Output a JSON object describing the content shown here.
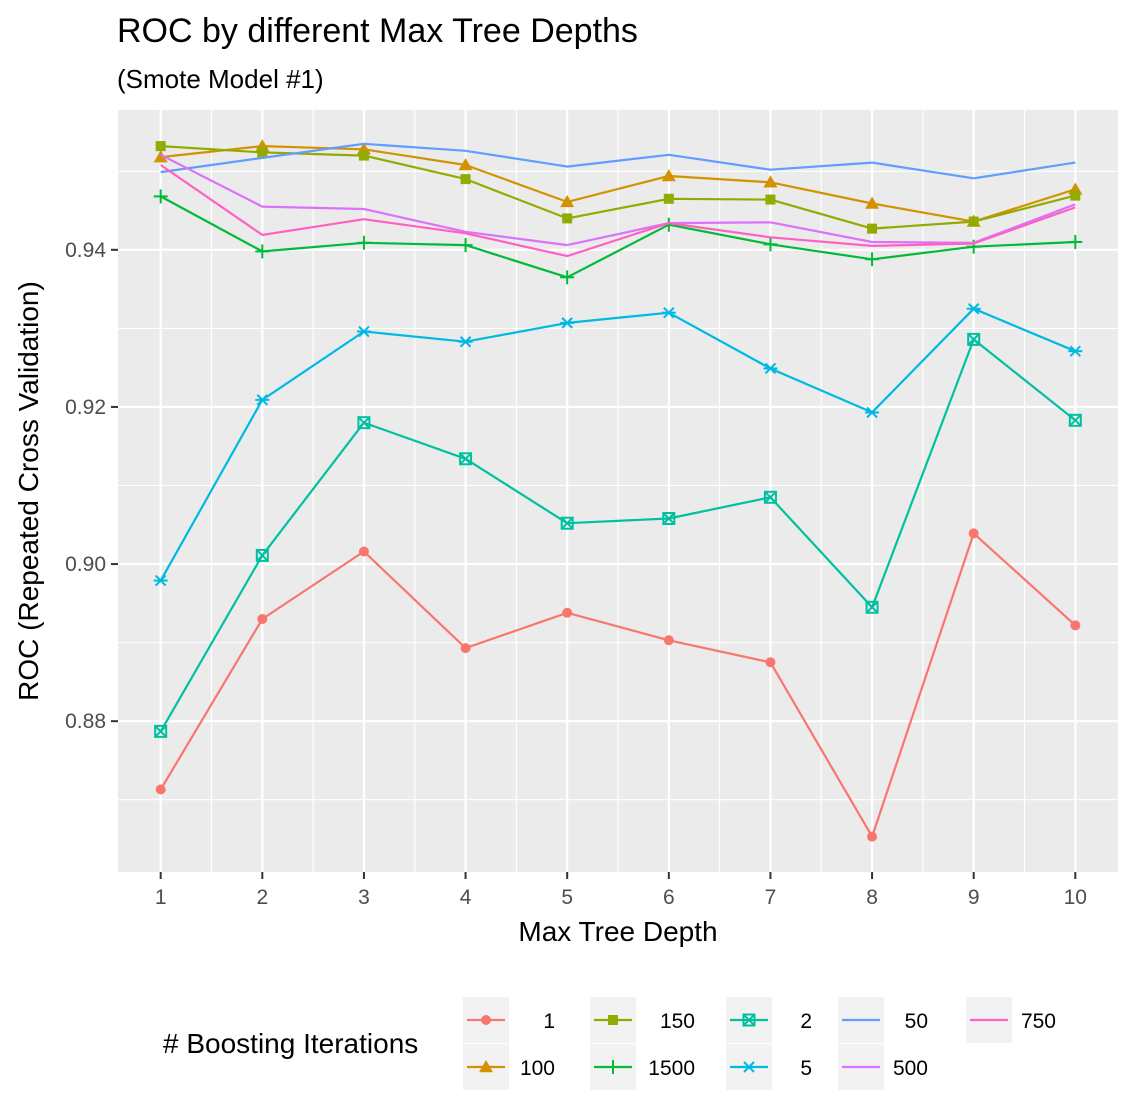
{
  "chart_data": {
    "type": "line",
    "title": "ROC by different Max Tree Depths",
    "subtitle": "(Smote Model #1)",
    "xlabel": "Max Tree Depth",
    "ylabel": "ROC (Repeated Cross Validation)",
    "x": [
      1,
      2,
      3,
      4,
      5,
      6,
      7,
      8,
      9,
      10
    ],
    "x_ticks": [
      "1",
      "2",
      "3",
      "4",
      "5",
      "6",
      "7",
      "8",
      "9",
      "10"
    ],
    "y_ticks": [
      0.88,
      0.9,
      0.92,
      0.94
    ],
    "y_tick_labels": [
      "0.88",
      "0.90",
      "0.92",
      "0.94"
    ],
    "xlim": [
      0.58,
      10.42
    ],
    "ylim": [
      0.8608,
      0.9578
    ],
    "grid": true,
    "legend": {
      "title": "# Boosting Iterations",
      "position": "bottom"
    },
    "series": [
      {
        "name": "1",
        "color": "#F8766D",
        "marker": "circle",
        "values": [
          0.8713,
          0.893,
          0.9016,
          0.8893,
          0.8938,
          0.8903,
          0.8875,
          0.8653,
          0.9039,
          0.8922
        ]
      },
      {
        "name": "100",
        "color": "#D39200",
        "marker": "triangle",
        "values": [
          0.9518,
          0.9532,
          0.9528,
          0.9508,
          0.9461,
          0.9494,
          0.9486,
          0.9459,
          0.9436,
          0.9477
        ]
      },
      {
        "name": "150",
        "color": "#93AA00",
        "marker": "square",
        "values": [
          0.9532,
          0.9524,
          0.952,
          0.949,
          0.944,
          0.9465,
          0.9464,
          0.9427,
          0.9436,
          0.9469
        ]
      },
      {
        "name": "1500",
        "color": "#00BA38",
        "marker": "plus",
        "values": [
          0.9468,
          0.9398,
          0.9409,
          0.9406,
          0.9365,
          0.9432,
          0.9407,
          0.9388,
          0.9404,
          0.941
        ]
      },
      {
        "name": "2",
        "color": "#00C19F",
        "marker": "square-x",
        "values": [
          0.8787,
          0.9011,
          0.918,
          0.9134,
          0.9052,
          0.9058,
          0.9085,
          0.8945,
          0.9286,
          0.9183
        ]
      },
      {
        "name": "5",
        "color": "#00B9E3",
        "marker": "asterisk",
        "values": [
          0.8979,
          0.9209,
          0.9296,
          0.9283,
          0.9307,
          0.932,
          0.9249,
          0.9193,
          0.9325,
          0.9271
        ]
      },
      {
        "name": "50",
        "color": "#619CFF",
        "marker": "none",
        "values": [
          0.9499,
          0.9517,
          0.9535,
          0.9526,
          0.9506,
          0.9521,
          0.9502,
          0.9511,
          0.9491,
          0.9511
        ]
      },
      {
        "name": "500",
        "color": "#DB72FB",
        "marker": "none",
        "values": [
          0.9521,
          0.9455,
          0.9452,
          0.9423,
          0.9406,
          0.9434,
          0.9435,
          0.941,
          0.9409,
          0.9458
        ]
      },
      {
        "name": "750",
        "color": "#FF61C3",
        "marker": "none",
        "values": [
          0.9508,
          0.9419,
          0.9439,
          0.9421,
          0.9392,
          0.9434,
          0.9416,
          0.9405,
          0.9408,
          0.9454
        ]
      }
    ]
  }
}
